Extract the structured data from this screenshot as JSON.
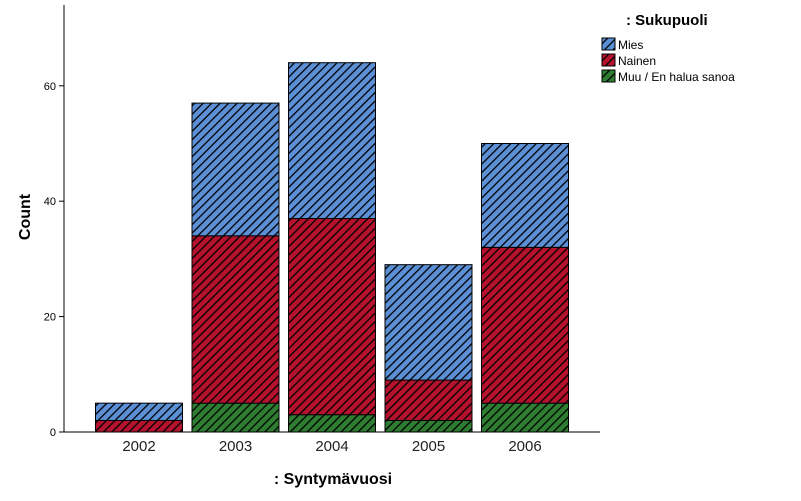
{
  "chart_data": {
    "type": "bar",
    "stacked": true,
    "xlabel": ": Syntymävuosi",
    "ylabel": "Count",
    "categories": [
      "2002",
      "2003",
      "2004",
      "2005",
      "2006"
    ],
    "ylim": [
      0,
      74
    ],
    "yticks": [
      0,
      20,
      40,
      60
    ],
    "grid": false,
    "legend": {
      "title": ": Sukupuoli",
      "placement": "top-right"
    },
    "series": [
      {
        "name": "Muu / En halua sanoa",
        "color": "#2e7d32",
        "values": [
          0,
          5,
          3,
          2,
          5
        ]
      },
      {
        "name": "Nainen",
        "color": "#b5122e",
        "values": [
          2,
          29,
          34,
          7,
          27
        ]
      },
      {
        "name": "Mies",
        "color": "#5b8fd6",
        "values": [
          3,
          23,
          27,
          20,
          18
        ]
      }
    ],
    "legend_order": [
      "Mies",
      "Nainen",
      "Muu / En halua sanoa"
    ],
    "pattern": "diagonal-hatch"
  }
}
